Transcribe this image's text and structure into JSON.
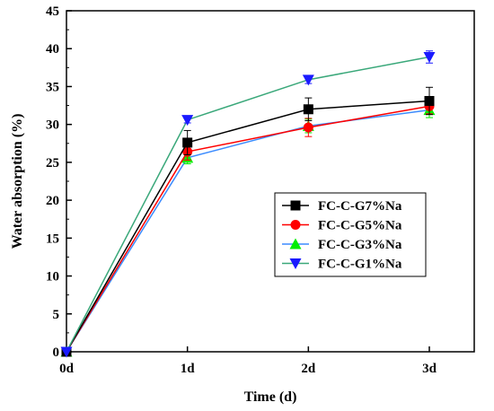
{
  "chart_data": {
    "type": "line",
    "categories": [
      "0d",
      "1d",
      "2d",
      "3d"
    ],
    "x": [
      0,
      1,
      2,
      3
    ],
    "xlabel": "Time (d)",
    "ylabel": "Water absorption (%)",
    "ylim": [
      0,
      45
    ],
    "yticks": [
      0,
      5,
      10,
      15,
      20,
      25,
      30,
      35,
      40,
      45
    ],
    "legend_position": "center-right",
    "grid": false,
    "series": [
      {
        "name": "FC-C-G7%Na",
        "color": "#000000",
        "marker": "square",
        "values": [
          0,
          27.6,
          32.0,
          33.1
        ],
        "errors": [
          0,
          1.6,
          1.5,
          1.8
        ]
      },
      {
        "name": "FC-C-G5%Na",
        "color": "#ff0000",
        "marker": "circle",
        "values": [
          0,
          26.4,
          29.6,
          32.4
        ],
        "errors": [
          0,
          1.1,
          1.2,
          1.0
        ]
      },
      {
        "name": "FC-C-G3%Na",
        "color": "#3c8cff",
        "marker": "triangle-up",
        "marker_color": "#00ee00",
        "values": [
          0,
          25.6,
          29.8,
          31.9
        ],
        "errors": [
          0,
          0.8,
          0.9,
          1.0
        ]
      },
      {
        "name": "FC-C-G1%Na",
        "color": "#3aa87a",
        "marker": "triangle-down",
        "marker_color": "#1a1aff",
        "values": [
          0,
          30.6,
          35.9,
          38.9
        ],
        "errors": [
          0,
          0.4,
          0.5,
          0.8
        ]
      }
    ]
  }
}
